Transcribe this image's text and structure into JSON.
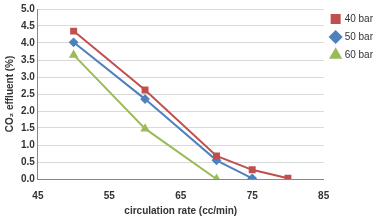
{
  "chart_data": {
    "type": "line",
    "x_label": "circulation rate (cc/min)",
    "y_label": "CO₂ effluent (%)",
    "xlim": [
      45,
      85
    ],
    "xticks": [
      45,
      55,
      65,
      75,
      85
    ],
    "ylim": [
      0,
      5
    ],
    "yticks": [
      {
        "value": 0,
        "label": "0.0"
      },
      0.5,
      {
        "value": 1,
        "label": "1.0"
      },
      1.5,
      {
        "value": 2,
        "label": "2.0"
      },
      2.5,
      {
        "value": 3,
        "label": "3.0"
      },
      3.5,
      {
        "value": 4,
        "label": "4.0"
      },
      4.5,
      {
        "value": 5,
        "label": "5.0"
      }
    ],
    "grid": true,
    "legend": "upper right",
    "series": [
      {
        "name": "40 bar",
        "color": "#c0504d",
        "marker": "square",
        "x": [
          50,
          60,
          70,
          75,
          80
        ],
        "values": [
          4.35,
          2.62,
          0.68,
          0.27,
          0.02
        ]
      },
      {
        "name": "50 bar",
        "color": "#4f81bd",
        "marker": "diamond",
        "x": [
          50,
          60,
          70,
          75
        ],
        "values": [
          4.02,
          2.35,
          0.55,
          0.02
        ]
      },
      {
        "name": "60 bar",
        "color": "#9bbb59",
        "marker": "triangle",
        "x": [
          50,
          60,
          70
        ],
        "values": [
          3.65,
          1.48,
          0.0
        ]
      }
    ]
  }
}
